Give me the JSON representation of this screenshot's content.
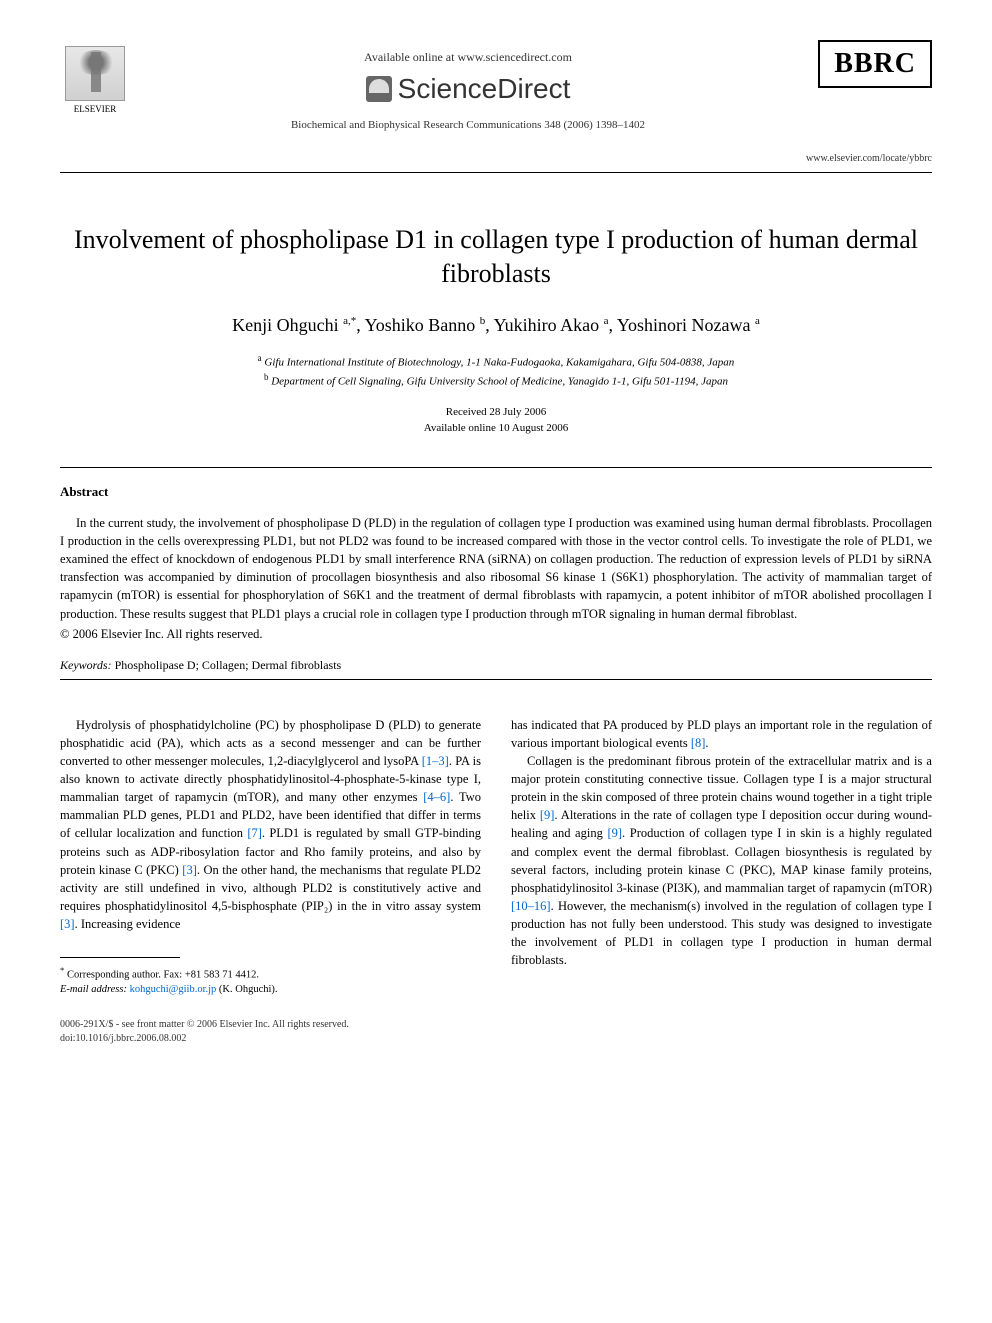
{
  "header": {
    "elsevier_label": "ELSEVIER",
    "available_online": "Available online at www.sciencedirect.com",
    "sciencedirect": "ScienceDirect",
    "journal_ref": "Biochemical and Biophysical Research Communications 348 (2006) 1398–1402",
    "bbrc": "BBRC",
    "bbrc_url": "www.elsevier.com/locate/ybbrc"
  },
  "title": "Involvement of phospholipase D1 in collagen type I production of human dermal fibroblasts",
  "authors_html": "Kenji Ohguchi <sup>a,*</sup>, Yoshiko Banno <sup>b</sup>, Yukihiro Akao <sup>a</sup>, Yoshinori Nozawa <sup>a</sup>",
  "affiliations": {
    "a": "Gifu International Institute of Biotechnology, 1-1 Naka-Fudogaoka, Kakamigahara, Gifu 504-0838, Japan",
    "b": "Department of Cell Signaling, Gifu University School of Medicine, Yanagido 1-1, Gifu 501-1194, Japan"
  },
  "dates": {
    "received": "Received 28 July 2006",
    "available": "Available online 10 August 2006"
  },
  "abstract": {
    "heading": "Abstract",
    "text": "In the current study, the involvement of phospholipase D (PLD) in the regulation of collagen type I production was examined using human dermal fibroblasts. Procollagen I production in the cells overexpressing PLD1, but not PLD2 was found to be increased compared with those in the vector control cells. To investigate the role of PLD1, we examined the effect of knockdown of endogenous PLD1 by small interference RNA (siRNA) on collagen production. The reduction of expression levels of PLD1 by siRNA transfection was accompanied by diminution of procollagen biosynthesis and also ribosomal S6 kinase 1 (S6K1) phosphorylation. The activity of mammalian target of rapamycin (mTOR) is essential for phosphorylation of S6K1 and the treatment of dermal fibroblasts with rapamycin, a potent inhibitor of mTOR abolished procollagen I production. These results suggest that PLD1 plays a crucial role in collagen type I production through mTOR signaling in human dermal fibroblast.",
    "copyright": "© 2006 Elsevier Inc. All rights reserved."
  },
  "keywords": {
    "label": "Keywords:",
    "text": "Phospholipase D; Collagen; Dermal fibroblasts"
  },
  "body": {
    "col1_p1_a": "Hydrolysis of phosphatidylcholine (PC) by phospholipase D (PLD) to generate phosphatidic acid (PA), which acts as a second messenger and can be further converted to other messenger molecules, 1,2-diacylglycerol and lysoPA ",
    "col1_p1_ref1": "[1–3]",
    "col1_p1_b": ". PA is also known to activate directly phosphatidylinositol-4-phosphate-5-kinase type I, mammalian target of rapamycin (mTOR), and many other enzymes ",
    "col1_p1_ref2": "[4–6]",
    "col1_p1_c": ". Two mammalian PLD genes, PLD1 and PLD2, have been identified that differ in terms of cellular localization and function ",
    "col1_p1_ref3": "[7]",
    "col1_p1_d": ". PLD1 is regulated by small GTP-binding proteins such as ADP-ribosylation factor and Rho family proteins, and also by protein kinase C (PKC) ",
    "col1_p1_ref4": "[3]",
    "col1_p1_e": ". On the other hand, the mechanisms that regulate PLD2 activity are still undefined in vivo, although PLD2 is constitutively active and requires phosphatidylinositol 4,5-bisphosphate (PIP₂) in the in vitro assay system ",
    "col1_p1_ref5": "[3]",
    "col1_p1_f": ". Increasing evidence",
    "col2_p1_a": "has indicated that PA produced by PLD plays an important role in the regulation of various important biological events ",
    "col2_p1_ref1": "[8]",
    "col2_p1_b": ".",
    "col2_p2_a": "Collagen is the predominant fibrous protein of the extracellular matrix and is a major protein constituting connective tissue. Collagen type I is a major structural protein in the skin composed of three protein chains wound together in a tight triple helix ",
    "col2_p2_ref1": "[9]",
    "col2_p2_b": ". Alterations in the rate of collagen type I deposition occur during wound-healing and aging ",
    "col2_p2_ref2": "[9]",
    "col2_p2_c": ". Production of collagen type I in skin is a highly regulated and complex event the dermal fibroblast. Collagen biosynthesis is regulated by several factors, including protein kinase C (PKC), MAP kinase family proteins, phosphatidylinositol 3-kinase (PI3K), and mammalian target of rapamycin (mTOR) ",
    "col2_p2_ref3": "[10–16]",
    "col2_p2_d": ". However, the mechanism(s) involved in the regulation of collagen type I production has not fully been understood. This study was designed to investigate the involvement of PLD1 in collagen type I production in human dermal fibroblasts."
  },
  "footnotes": {
    "corresponding": "Corresponding author. Fax: +81 583 71 4412.",
    "email_label": "E-mail address:",
    "email": "kohguchi@giib.or.jp",
    "email_name": "(K. Ohguchi)."
  },
  "footer": {
    "line1": "0006-291X/$ - see front matter © 2006 Elsevier Inc. All rights reserved.",
    "line2": "doi:10.1016/j.bbrc.2006.08.002"
  },
  "colors": {
    "link": "#0066cc",
    "text": "#000000",
    "background": "#ffffff"
  }
}
